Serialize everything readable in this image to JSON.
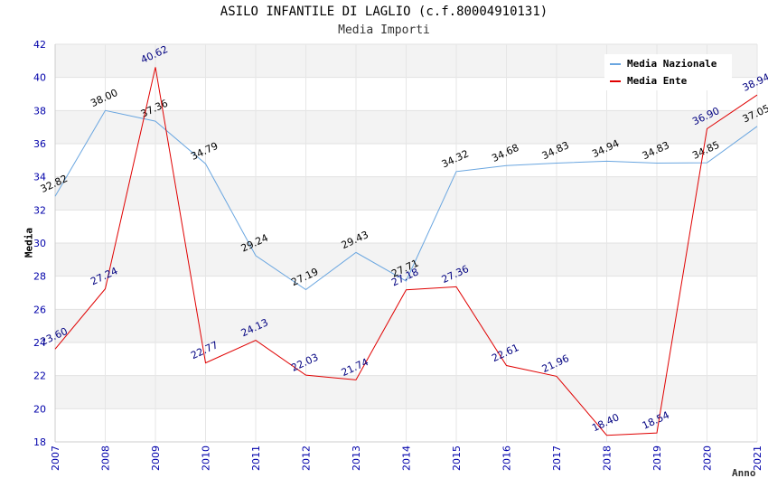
{
  "chart_data": {
    "type": "line",
    "title": "ASILO INFANTILE DI LAGLIO (c.f.80004910131)",
    "subtitle": "Media Importi",
    "xlabel": "Anno",
    "ylabel": "Media",
    "ylim": [
      18,
      42
    ],
    "yticks": [
      18,
      20,
      22,
      24,
      26,
      28,
      30,
      32,
      34,
      36,
      38,
      40,
      42
    ],
    "categories": [
      "2007",
      "2008",
      "2009",
      "2010",
      "2011",
      "2012",
      "2013",
      "2014",
      "2015",
      "2016",
      "2017",
      "2018",
      "2019",
      "2020",
      "2021"
    ],
    "series": [
      {
        "name": "Media Nazionale",
        "color": "#6aa6e0",
        "label_color": "#000000",
        "values": [
          32.82,
          38.0,
          37.36,
          34.79,
          29.24,
          27.19,
          29.43,
          27.71,
          34.32,
          34.68,
          34.83,
          34.94,
          34.83,
          34.85,
          37.05
        ],
        "labels": [
          "32.82",
          "38.00",
          "37.36",
          "34.79",
          "29.24",
          "27.19",
          "29.43",
          "27.71",
          "34.32",
          "34.68",
          "34.83",
          "34.94",
          "34.83",
          "34.85",
          "37.05"
        ]
      },
      {
        "name": "Media Ente",
        "color": "#e00000",
        "label_color": "#000080",
        "values": [
          23.6,
          27.24,
          40.62,
          22.77,
          24.13,
          22.03,
          21.74,
          27.18,
          27.36,
          22.61,
          21.96,
          18.4,
          18.54,
          36.9,
          38.94
        ],
        "labels": [
          "23.60",
          "27.24",
          "40.62",
          "22.77",
          "24.13",
          "22.03",
          "21.74",
          "27.18",
          "27.36",
          "22.61",
          "21.96",
          "18.40",
          "18.54",
          "36.90",
          "38.94"
        ]
      }
    ],
    "grid": true,
    "legend_position": "top-right",
    "tick_color": "#0000aa"
  }
}
